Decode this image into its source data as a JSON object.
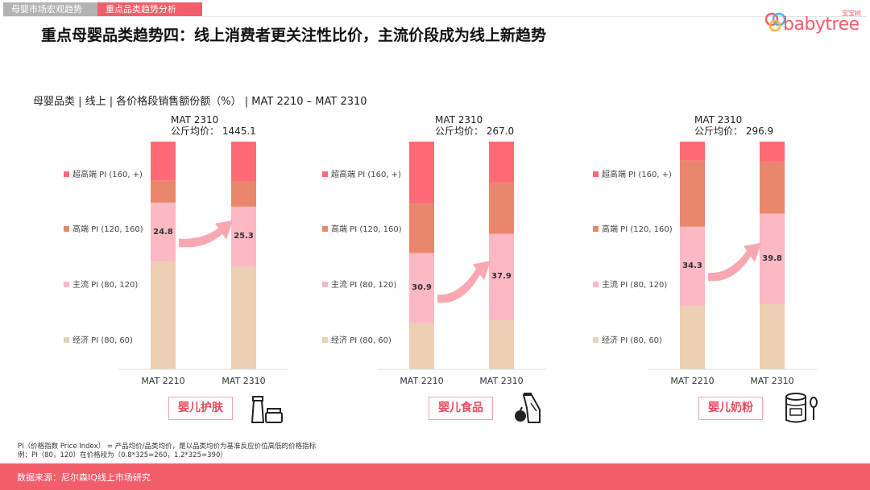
{
  "tabs": [
    {
      "label": "母婴市场宏观趋势"
    },
    {
      "label": "重点品类趋势分析"
    }
  ],
  "title": "重点母婴品类趋势四：线上消费者更关注性比价，主流价段成为线上新趋势",
  "logo": {
    "cn": "宝宝树",
    "en": "babytree"
  },
  "subtitle": "母婴品类 | 线上 | 各价格段销售额份额（%） | MAT 2210 – MAT 2310",
  "colors": {
    "super_high": "#fe6b76",
    "high": "#e9876d",
    "mainstream": "#fcb8c3",
    "economy": "#edcfb4",
    "arrow": "#f9a8b2",
    "accent": "#f25d6a"
  },
  "legend": [
    {
      "label": "超高端 PI (160, +)",
      "color_key": "super_high"
    },
    {
      "label": "高端 PI (120, 160)",
      "color_key": "high"
    },
    {
      "label": "主流 PI (80, 120)",
      "color_key": "mainstream"
    },
    {
      "label": "经济 PI (80, 60)",
      "color_key": "economy"
    }
  ],
  "chart_data": [
    {
      "type": "bar",
      "stacked": true,
      "category": "婴儿护肤",
      "avg_label": "MAT 2310",
      "avg_value": "公斤均价：  1445.1",
      "categories": [
        "MAT 2210",
        "MAT 2310"
      ],
      "series": [
        {
          "name": "经济 PI (80, 60)",
          "values": [
            45.1,
            43.7
          ]
        },
        {
          "name": "主流 PI (80, 120)",
          "values": [
            24.8,
            25.3
          ]
        },
        {
          "name": "高端 PI (120, 160)",
          "values": [
            9.3,
            10.7
          ]
        },
        {
          "name": "超高端 PI (160, +)",
          "values": [
            16.3,
            16.9
          ]
        }
      ],
      "labels": [
        "24.8",
        "25.3"
      ],
      "ylim": [
        0,
        100
      ]
    },
    {
      "type": "bar",
      "stacked": true,
      "category": "婴儿食品",
      "avg_label": "MAT 2310",
      "avg_value": "公斤均价：  267.0",
      "categories": [
        "MAT 2210",
        "MAT 2310"
      ],
      "series": [
        {
          "name": "经济 PI (80, 60)",
          "values": [
            20.2,
            21.6
          ]
        },
        {
          "name": "主流 PI (80, 120)",
          "values": [
            30.9,
            37.9
          ]
        },
        {
          "name": "高端 PI (120, 160)",
          "values": [
            21.6,
            22.5
          ]
        },
        {
          "name": "超高端 PI (160, +)",
          "values": [
            27.3,
            18.0
          ]
        }
      ],
      "labels": [
        "30.9",
        "37.9"
      ],
      "ylim": [
        0,
        100
      ]
    },
    {
      "type": "bar",
      "stacked": true,
      "category": "婴儿奶粉",
      "avg_label": "MAT 2310",
      "avg_value": "公斤均价：  296.9",
      "categories": [
        "MAT 2210",
        "MAT 2310"
      ],
      "series": [
        {
          "name": "经济 PI (80, 60)",
          "values": [
            27.5,
            28.6
          ]
        },
        {
          "name": "主流 PI (80, 120)",
          "values": [
            34.3,
            39.8
          ]
        },
        {
          "name": "高端 PI (120, 160)",
          "values": [
            28.6,
            22.8
          ]
        },
        {
          "name": "超高端 PI (160, +)",
          "values": [
            8.3,
            8.8
          ]
        }
      ],
      "labels": [
        "34.3",
        "39.8"
      ],
      "ylim": [
        0,
        100
      ]
    }
  ],
  "notes": [
    "PI（价格指数 Price Index） = 产品均价/品类均价，是以品类均价为基准反应价位高低的价格指标",
    "例：PI（80，120）在价格段为（0.8*325=260，1.2*325=390）"
  ],
  "footer": "数据来源：尼尔森IQ线上市场研究"
}
